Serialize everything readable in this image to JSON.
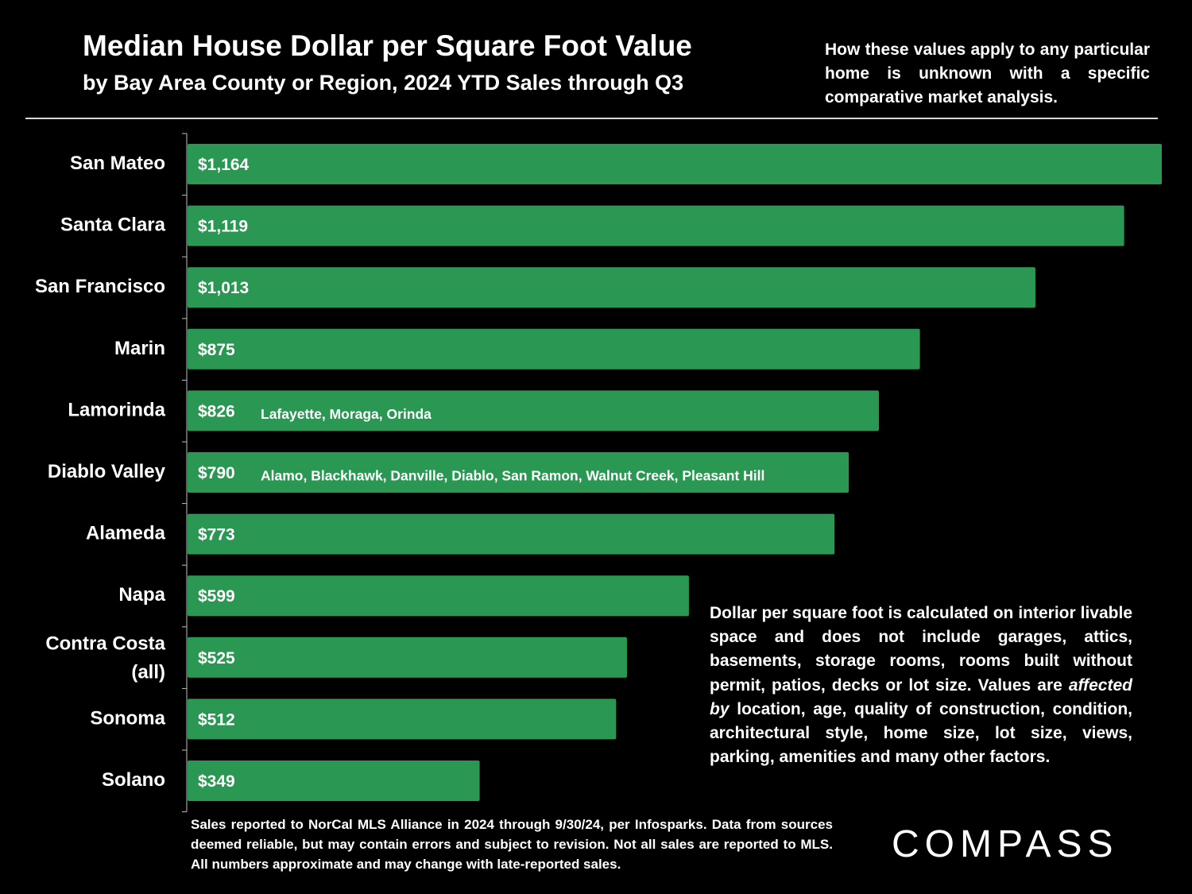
{
  "header": {
    "title": "Median House Dollar per Square Foot Value",
    "subtitle": "by Bay Area County or Region, 2024 YTD Sales through Q3",
    "note": "How these values apply to any particular home is unknown with a specific comparative market analysis."
  },
  "chart_data": {
    "type": "bar",
    "orientation": "horizontal",
    "categories": [
      "San Mateo",
      "Santa Clara",
      "San Francisco",
      "Marin",
      "Lamorinda",
      "Diablo Valley",
      "Alameda",
      "Napa",
      "Contra Costa (all)",
      "Sonoma",
      "Solano"
    ],
    "values": [
      1164,
      1119,
      1013,
      875,
      826,
      790,
      773,
      599,
      525,
      512,
      349
    ],
    "data_labels": [
      "$1,164",
      "$1,119",
      "$1,013",
      "$875",
      "$826",
      "$790",
      "$773",
      "$599",
      "$525",
      "$512",
      "$349"
    ],
    "annotations": [
      "",
      "",
      "",
      "",
      "Lafayette, Moraga, Orinda",
      "Alamo, Blackhawk, Danville, Diablo, San Ramon, Walnut Creek, Pleasant Hill",
      "",
      "",
      "",
      "",
      ""
    ],
    "bar_color": "#2a9853",
    "xlim": [
      0,
      1164
    ],
    "grid": false,
    "legend": "none"
  },
  "side_note": {
    "before": "Dollar per square foot is calculated on interior livable space and does not include garages, attics, basements, storage rooms, rooms built without permit, patios, decks or lot size. Values are ",
    "emphasis": "affected by",
    "after": " location, age, quality of construction, condition, architectural style, home size, lot size, views, parking, amenities and many other factors."
  },
  "footnote": "Sales reported to NorCal MLS Alliance in 2024 through 9/30/24, per Infosparks. Data from sources deemed reliable, but may contain errors and subject to revision. Not all sales are reported to MLS. All numbers approximate and may change with late-reported sales.",
  "brand": {
    "logo_text": "COMPASS"
  }
}
